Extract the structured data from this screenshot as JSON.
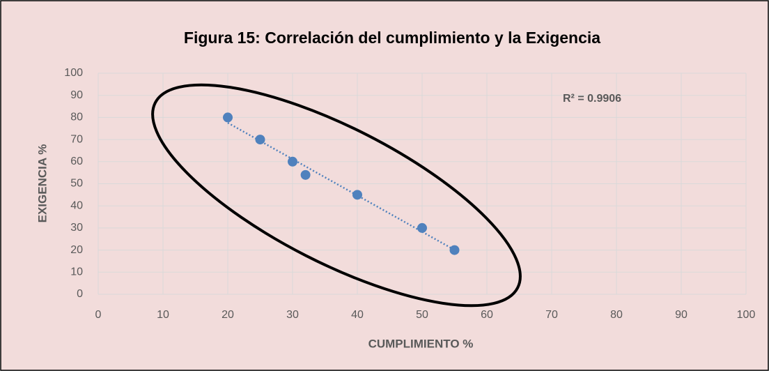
{
  "chart_data": {
    "type": "scatter",
    "title": "Figura 15: Correlación del cumplimiento y la Exigencia",
    "x_label": "CUMPLIMIENTO %",
    "y_label": "EXIGENCIA %",
    "annotation": "R² = 0.9906",
    "x": [
      20,
      25,
      30,
      32,
      40,
      50,
      55
    ],
    "values": [
      80,
      70,
      60,
      54,
      45,
      30,
      20
    ],
    "color": "#4f81bd",
    "trendline": true,
    "grid": true,
    "xlim": [
      0,
      100
    ],
    "xticks": [
      0,
      10,
      20,
      30,
      40,
      50,
      60,
      70,
      80,
      90,
      100
    ],
    "ylim": [
      0,
      100
    ],
    "yticks": [
      0,
      10,
      20,
      30,
      40,
      50,
      60,
      70,
      80,
      90,
      100
    ]
  }
}
